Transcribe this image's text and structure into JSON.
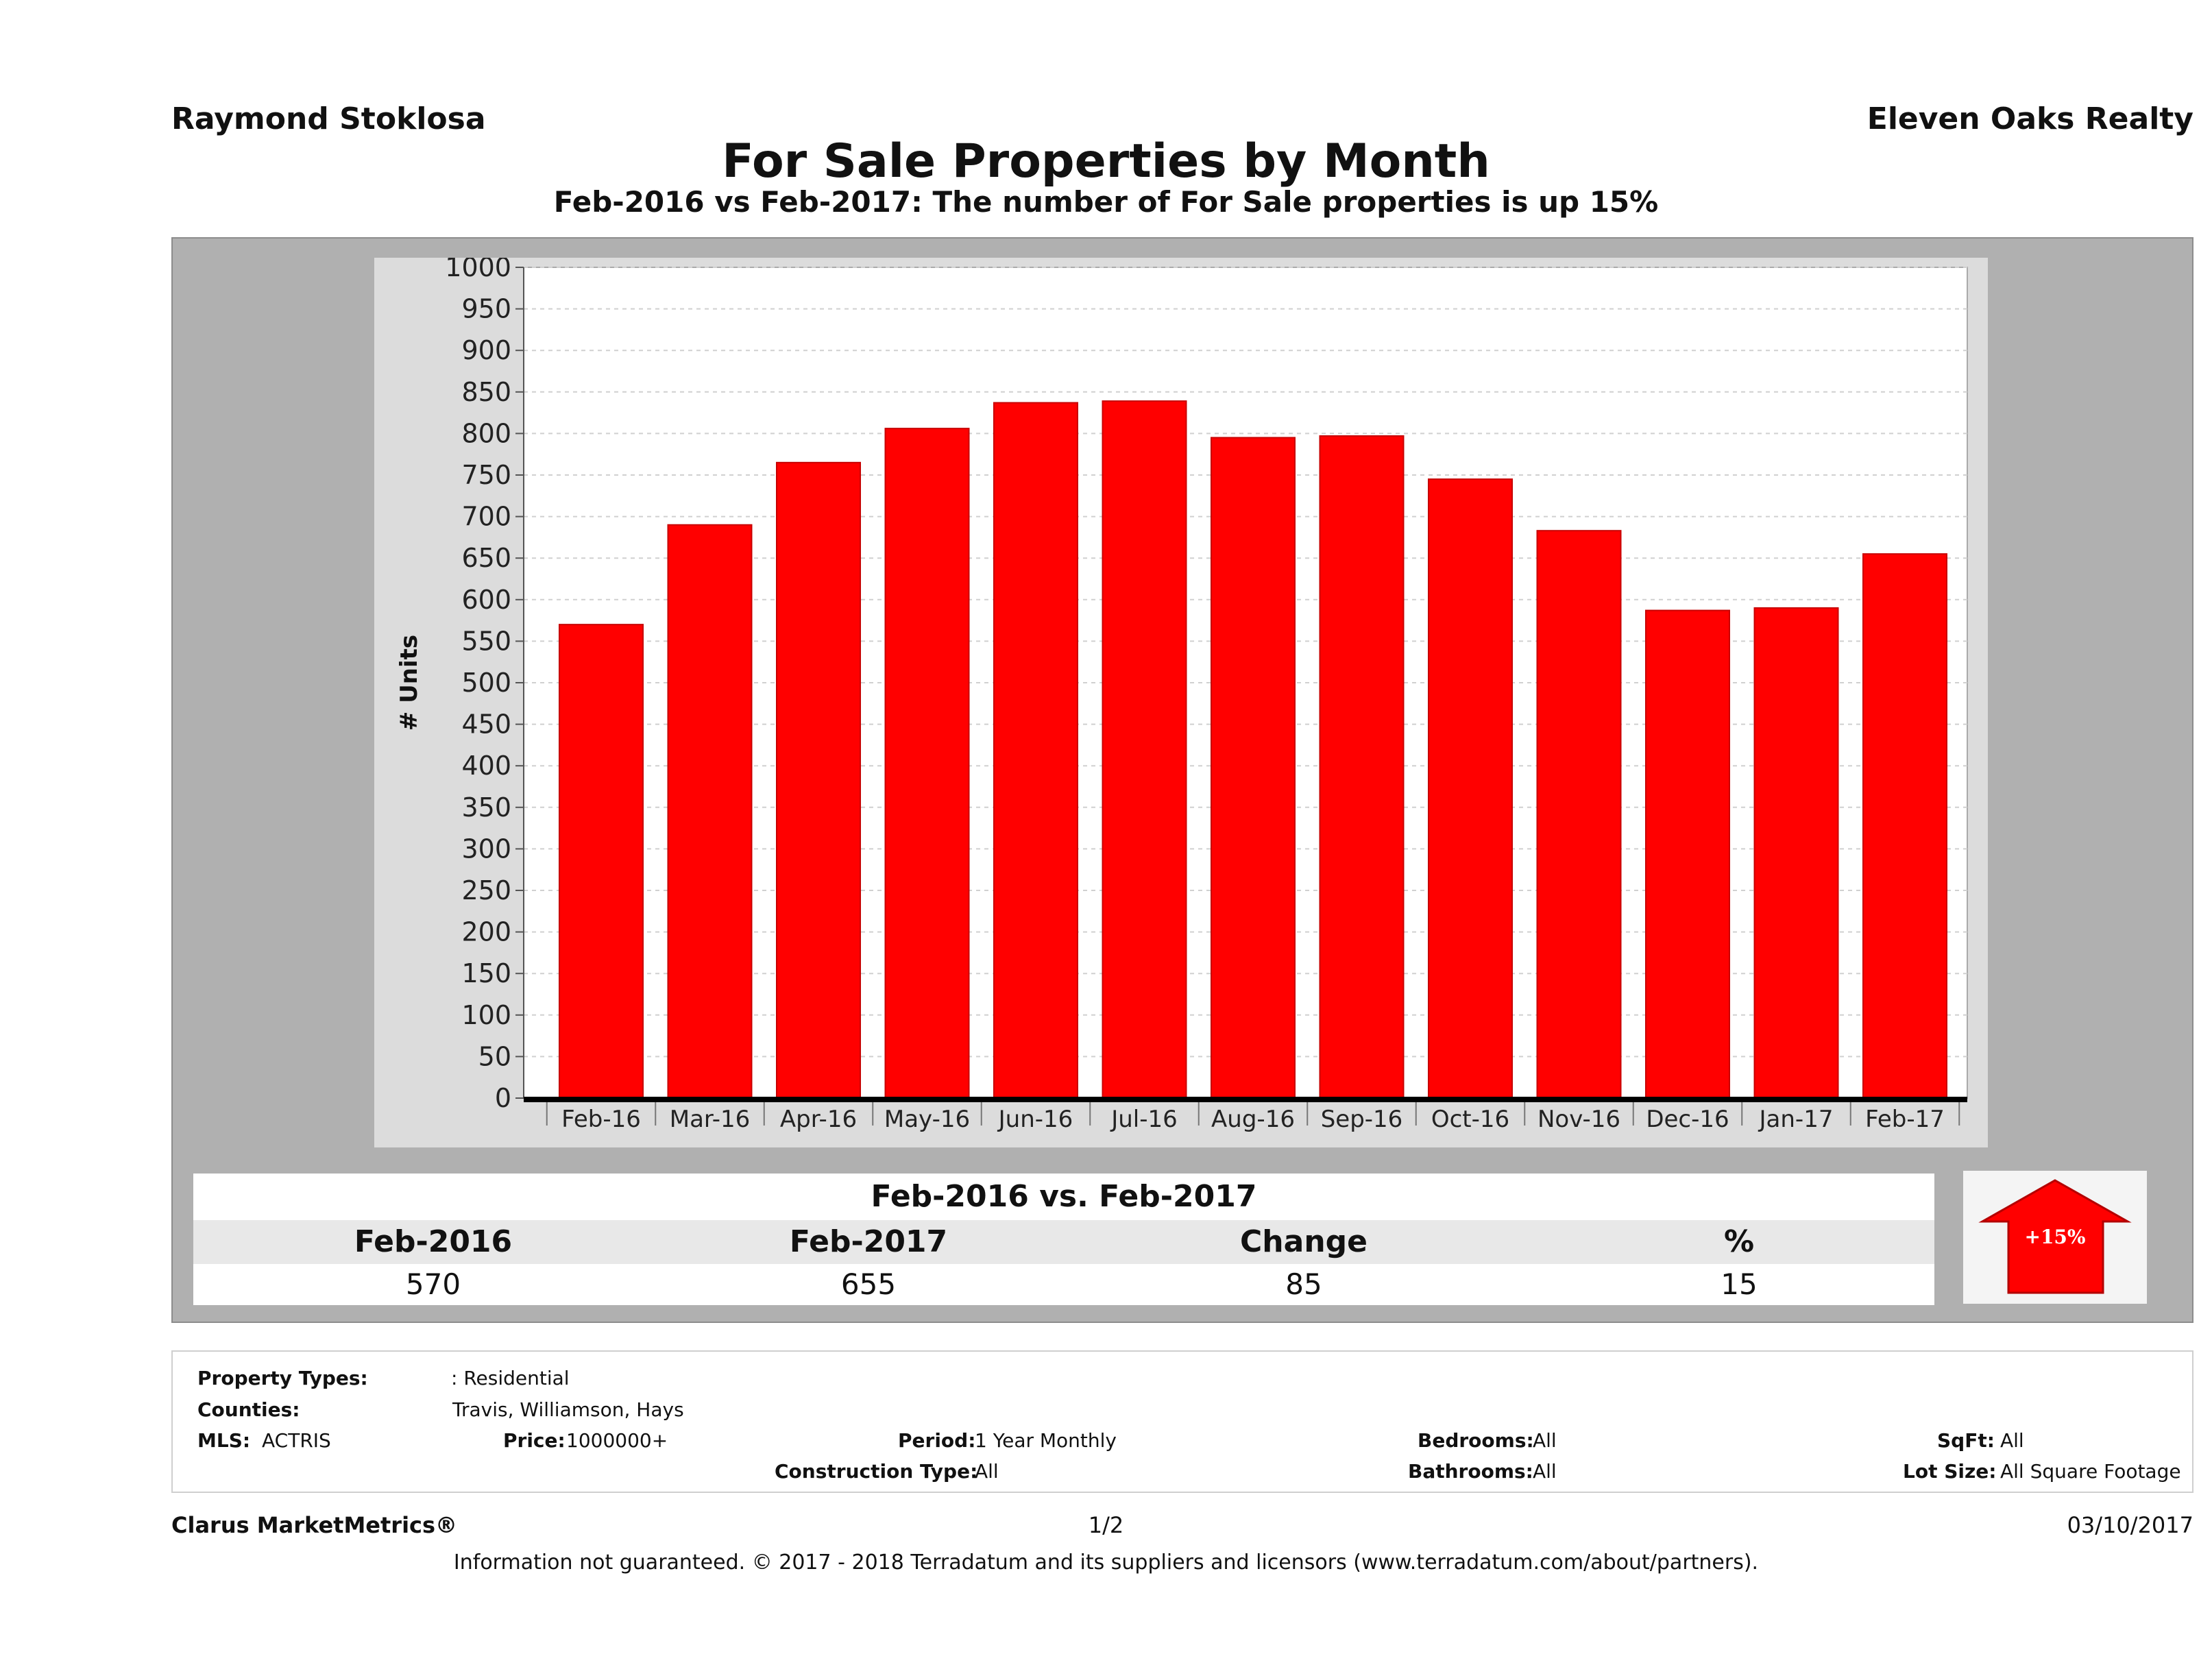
{
  "header": {
    "agent_name": "Raymond Stoklosa",
    "brokerage": "Eleven Oaks Realty",
    "title": "For Sale Properties by Month",
    "subtitle": "Feb-2016 vs Feb-2017: The number of For Sale  properties is up 15%"
  },
  "chart_data": {
    "type": "bar",
    "title": "",
    "xlabel": "",
    "ylabel": "# Units",
    "ylim": [
      0,
      1000
    ],
    "yticks": [
      0,
      50,
      100,
      150,
      200,
      250,
      300,
      350,
      400,
      450,
      500,
      550,
      600,
      650,
      700,
      750,
      800,
      850,
      900,
      950,
      1000
    ],
    "categories": [
      "Feb-16",
      "Mar-16",
      "Apr-16",
      "May-16",
      "Jun-16",
      "Jul-16",
      "Aug-16",
      "Sep-16",
      "Oct-16",
      "Nov-16",
      "Dec-16",
      "Jan-17",
      "Feb-17"
    ],
    "values": [
      570,
      690,
      765,
      806,
      837,
      839,
      795,
      797,
      745,
      683,
      587,
      590,
      655
    ],
    "bar_color": "#ff0000",
    "grid": true,
    "legend": "none"
  },
  "summary": {
    "heading": "Feb-2016 vs. Feb-2017",
    "columns": [
      "Feb-2016",
      "Feb-2017",
      "Change",
      "%"
    ],
    "values": [
      "570",
      "655",
      "85",
      "15"
    ],
    "badge": "+15%",
    "badge_color": "#ff0000"
  },
  "filters": {
    "property_types_label": "Property Types:",
    "property_types_value": ": Residential",
    "counties_label": "Counties:",
    "counties_value": "Travis, Williamson, Hays",
    "mls_label": "MLS:",
    "mls_value": "ACTRIS",
    "price_label": "Price:",
    "price_value": "1000000+",
    "period_label": "Period:",
    "period_value": "1 Year Monthly",
    "construction_label": "Construction Type:",
    "construction_value": "All",
    "bedrooms_label": "Bedrooms:",
    "bedrooms_value": "All",
    "bathrooms_label": "Bathrooms:",
    "bathrooms_value": "All",
    "sqft_label": "SqFt:",
    "sqft_value": "All",
    "lot_label": "Lot Size:",
    "lot_value": "All Square Footage"
  },
  "footer": {
    "brand": "Clarus MarketMetrics®",
    "page": "1/2",
    "date": "03/10/2017",
    "disclaimer": "Information not guaranteed. © 2017 - 2018 Terradatum and its suppliers and licensors (www.terradatum.com/about/partners)."
  }
}
